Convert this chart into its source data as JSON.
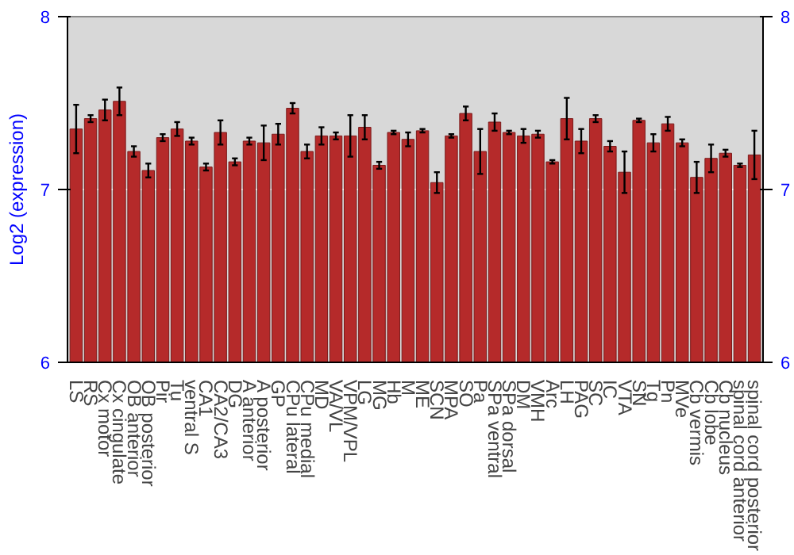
{
  "chart_data": {
    "type": "bar",
    "ylabel": "Log2 (expression)",
    "categories": [
      "LS",
      "RS",
      "Cx motor",
      "Cx cingulate",
      "OB anterior",
      "OB posterior",
      "Pir",
      "Tu",
      "ventral S",
      "CA1",
      "CA2/CA3",
      "DG",
      "A anterior",
      "A posterior",
      "GP",
      "CPu lateral",
      "CPu medial",
      "MD",
      "VA/VL",
      "VPM/VPL",
      "LG",
      "MG",
      "Hb",
      "M",
      "ME",
      "SCN",
      "MPA",
      "SO",
      "Pa",
      "SPa ventral",
      "SPa dorsal",
      "DM",
      "VMH",
      "Arc",
      "LH",
      "PAG",
      "SC",
      "IC",
      "VTA",
      "SN",
      "Tg",
      "Pn",
      "MVe",
      "Cb vermis",
      "Cb lobe",
      "Cb nucleus",
      "spinal cord anterior",
      "spinal cord posterior"
    ],
    "values": [
      7.35,
      7.41,
      7.46,
      7.51,
      7.22,
      7.11,
      7.3,
      7.35,
      7.28,
      7.13,
      7.33,
      7.16,
      7.28,
      7.27,
      7.32,
      7.47,
      7.22,
      7.31,
      7.31,
      7.31,
      7.36,
      7.14,
      7.33,
      7.29,
      7.34,
      7.04,
      7.31,
      7.44,
      7.22,
      7.39,
      7.33,
      7.31,
      7.32,
      7.16,
      7.41,
      7.28,
      7.41,
      7.25,
      7.1,
      7.4,
      7.27,
      7.38,
      7.27,
      7.07,
      7.18,
      7.21,
      7.14,
      7.2
    ],
    "errors": [
      0.14,
      0.02,
      0.06,
      0.08,
      0.03,
      0.04,
      0.02,
      0.04,
      0.02,
      0.02,
      0.07,
      0.02,
      0.02,
      0.1,
      0.06,
      0.03,
      0.04,
      0.05,
      0.02,
      0.12,
      0.07,
      0.02,
      0.01,
      0.04,
      0.01,
      0.06,
      0.01,
      0.04,
      0.13,
      0.05,
      0.01,
      0.04,
      0.02,
      0.01,
      0.12,
      0.07,
      0.02,
      0.03,
      0.12,
      0.01,
      0.05,
      0.04,
      0.02,
      0.09,
      0.08,
      0.02,
      0.01,
      0.14
    ],
    "color": "#b52a2a",
    "ylim": [
      6,
      8
    ],
    "yticks": [
      6,
      7,
      8
    ],
    "y2lim": [
      6,
      8
    ],
    "y2ticks": [
      6,
      7,
      8
    ],
    "grid": "y"
  }
}
